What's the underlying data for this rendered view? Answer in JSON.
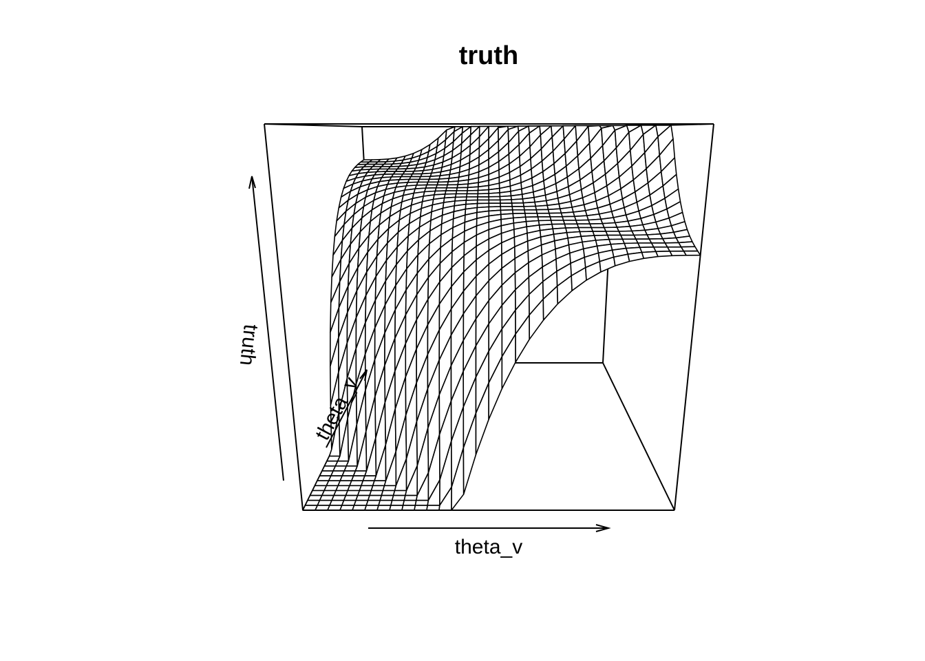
{
  "chart_data": {
    "type": "surface",
    "title": "truth",
    "xlabel": "theta_v",
    "ylabel": "theta_v",
    "zlabel": "truth",
    "x_range": [
      0,
      1
    ],
    "y_range": [
      0,
      1
    ],
    "grid_resolution": 30,
    "surface_shape": "cubic in (theta_v_x + theta_v_y - 1): flat plateau in the middle, rising sharply toward the far-right corner and dropping toward the near-left corner",
    "colors": {
      "lines": "#000000",
      "facets": "#ffffff",
      "background": "#ffffff"
    }
  }
}
